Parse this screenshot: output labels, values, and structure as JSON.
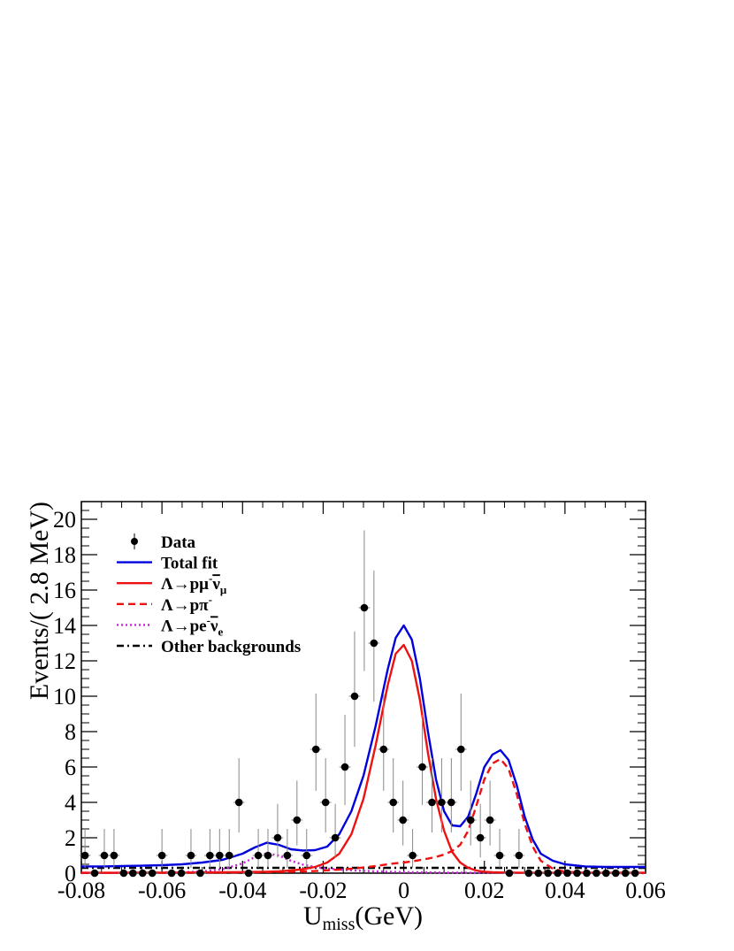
{
  "chart_data": {
    "type": "line",
    "xlabel_main": "U",
    "xlabel_sub": "miss",
    "xlabel_unit": "(GeV)",
    "ylabel": "Events/( 2.8 MeV)",
    "xlim": [
      -0.08,
      0.06
    ],
    "ylim": [
      0,
      21
    ],
    "x_ticks": [
      -0.08,
      -0.06,
      -0.04,
      -0.02,
      0,
      0.02,
      0.04,
      0.06
    ],
    "x_tick_labels": [
      "-0.08",
      "-0.06",
      "-0.04",
      "-0.02",
      "0",
      "0.02",
      "0.04",
      "0.06"
    ],
    "y_ticks": [
      0,
      2,
      4,
      6,
      8,
      10,
      12,
      14,
      16,
      18,
      20
    ],
    "y_tick_labels": [
      "0",
      "2",
      "4",
      "6",
      "8",
      "10",
      "12",
      "14",
      "16",
      "18",
      "20"
    ],
    "legend_position": "top-left",
    "legend": [
      {
        "key": "data",
        "label": "Data",
        "style": "marker",
        "color": "#000000"
      },
      {
        "key": "total",
        "label": "Total fit",
        "style": "solid",
        "color": "#0000dd"
      },
      {
        "key": "sig",
        "label": "Λ→pμ",
        "sup": "-",
        "rest": "ν",
        "sub": "μ",
        "style": "solid",
        "color": "#ee1111"
      },
      {
        "key": "ppi",
        "label": "Λ→pπ",
        "sup": "-",
        "style": "dashed",
        "color": "#ee1111"
      },
      {
        "key": "pe",
        "label": "Λ→pe",
        "sup": "-",
        "rest": "ν",
        "sub": "e",
        "style": "dotted",
        "color": "#cc22dd"
      },
      {
        "key": "other",
        "label": "Other backgrounds",
        "style": "dashdot",
        "color": "#000000"
      }
    ],
    "data_points": {
      "bin_width": 0.0028,
      "x": [
        -0.0791,
        -0.0767,
        -0.0743,
        -0.0719,
        -0.0695,
        -0.0672,
        -0.0648,
        -0.0624,
        -0.06,
        -0.0576,
        -0.0552,
        -0.0528,
        -0.0505,
        -0.0481,
        -0.0457,
        -0.0433,
        -0.0409,
        -0.0385,
        -0.0361,
        -0.0337,
        -0.0313,
        -0.0289,
        -0.0265,
        -0.0241,
        -0.0218,
        -0.0194,
        -0.017,
        -0.0146,
        -0.0122,
        -0.0098,
        -0.0074,
        -0.005,
        -0.0026,
        -0.0002,
        0.0022,
        0.0046,
        0.007,
        0.0094,
        0.0118,
        0.0142,
        0.0166,
        0.019,
        0.0214,
        0.0238,
        0.0262,
        0.0286,
        0.031,
        0.0334,
        0.0358,
        0.0382,
        0.0406,
        0.043,
        0.0454,
        0.0478,
        0.0502,
        0.0526,
        0.055,
        0.0574
      ],
      "y": [
        1,
        0,
        1,
        1,
        0,
        0,
        0,
        0,
        1,
        0,
        0,
        1,
        0,
        1,
        1,
        1,
        4,
        0,
        1,
        1,
        2,
        1,
        3,
        1,
        7,
        4,
        2,
        6,
        10,
        15,
        13,
        7,
        4,
        3,
        1,
        6,
        4,
        4,
        4,
        7,
        3,
        2,
        3,
        1,
        0,
        1,
        0,
        0,
        0,
        0,
        0,
        0,
        0,
        0,
        0,
        0,
        0,
        0
      ],
      "note_y_errors": "Poisson"
    },
    "curves": {
      "x": [
        -0.08,
        -0.075,
        -0.07,
        -0.065,
        -0.06,
        -0.055,
        -0.05,
        -0.045,
        -0.04,
        -0.037,
        -0.034,
        -0.031,
        -0.028,
        -0.025,
        -0.022,
        -0.019,
        -0.016,
        -0.013,
        -0.01,
        -0.007,
        -0.004,
        -0.002,
        0,
        0.002,
        0.004,
        0.006,
        0.008,
        0.01,
        0.012,
        0.014,
        0.016,
        0.018,
        0.02,
        0.022,
        0.024,
        0.026,
        0.028,
        0.03,
        0.032,
        0.034,
        0.037,
        0.04,
        0.045,
        0.05,
        0.055,
        0.06
      ],
      "total": [
        0.38,
        0.38,
        0.4,
        0.42,
        0.45,
        0.5,
        0.6,
        0.75,
        1.1,
        1.45,
        1.72,
        1.6,
        1.35,
        1.28,
        1.3,
        1.5,
        2.2,
        3.5,
        5.5,
        8.3,
        11.5,
        13.3,
        14.0,
        13.2,
        11.0,
        8.0,
        5.3,
        3.5,
        2.7,
        2.65,
        3.2,
        4.5,
        6.0,
        6.7,
        6.95,
        6.4,
        5.0,
        3.2,
        1.9,
        1.1,
        0.7,
        0.5,
        0.38,
        0.35,
        0.35,
        0.35
      ],
      "sig": [
        0.02,
        0.02,
        0.02,
        0.03,
        0.03,
        0.03,
        0.04,
        0.05,
        0.06,
        0.07,
        0.08,
        0.1,
        0.15,
        0.22,
        0.35,
        0.6,
        1.1,
        2.2,
        4.2,
        7.2,
        10.6,
        12.4,
        12.9,
        12.0,
        9.8,
        6.8,
        4.2,
        2.4,
        1.2,
        0.6,
        0.3,
        0.15,
        0.08,
        0.05,
        0.04,
        0.03,
        0.03,
        0.02,
        0.02,
        0.02,
        0.02,
        0.02,
        0.02,
        0.02,
        0.02,
        0.02
      ],
      "ppi": [
        0.02,
        0.02,
        0.02,
        0.02,
        0.02,
        0.02,
        0.03,
        0.03,
        0.04,
        0.05,
        0.06,
        0.07,
        0.08,
        0.1,
        0.12,
        0.16,
        0.2,
        0.25,
        0.32,
        0.4,
        0.5,
        0.56,
        0.6,
        0.66,
        0.74,
        0.82,
        0.92,
        1.05,
        1.25,
        1.6,
        2.4,
        3.8,
        5.3,
        6.2,
        6.45,
        5.9,
        4.5,
        2.8,
        1.5,
        0.7,
        0.25,
        0.08,
        0.02,
        0.02,
        0.02,
        0.02
      ],
      "pe": [
        0.0,
        0.01,
        0.01,
        0.02,
        0.03,
        0.05,
        0.1,
        0.22,
        0.55,
        0.9,
        1.12,
        1.0,
        0.7,
        0.48,
        0.35,
        0.26,
        0.2,
        0.16,
        0.13,
        0.1,
        0.08,
        0.07,
        0.06,
        0.05,
        0.05,
        0.04,
        0.04,
        0.03,
        0.03,
        0.03,
        0.02,
        0.02,
        0.02,
        0.02,
        0.02,
        0.02,
        0.02,
        0.01,
        0.01,
        0.01,
        0.01,
        0.01,
        0.0,
        0.0,
        0.0,
        0.0
      ],
      "other": [
        0.3,
        0.3,
        0.3,
        0.3,
        0.3,
        0.3,
        0.3,
        0.3,
        0.3,
        0.3,
        0.3,
        0.3,
        0.3,
        0.3,
        0.3,
        0.3,
        0.3,
        0.3,
        0.3,
        0.3,
        0.3,
        0.3,
        0.3,
        0.3,
        0.3,
        0.3,
        0.3,
        0.3,
        0.3,
        0.3,
        0.3,
        0.3,
        0.3,
        0.3,
        0.3,
        0.3,
        0.3,
        0.3,
        0.3,
        0.3,
        0.3,
        0.3,
        0.3,
        0.3,
        0.3,
        0.3
      ]
    }
  }
}
